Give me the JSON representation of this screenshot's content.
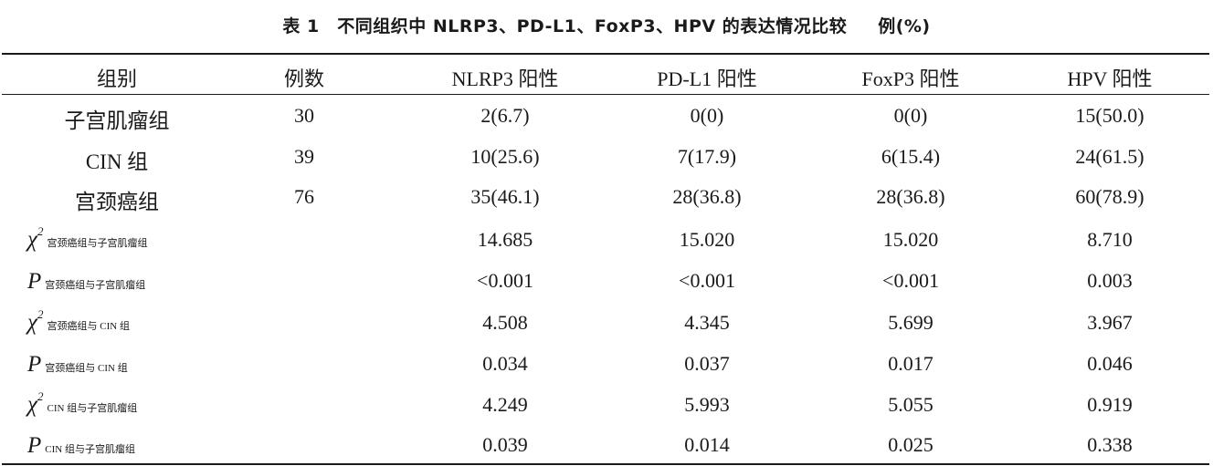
{
  "caption": {
    "title": "表 1　不同组织中 NLRP3、PD-L1、FoxP3、HPV 的表达情况比较",
    "unit": "例(%)"
  },
  "headers": [
    "组别",
    "例数",
    "NLRP3 阳性",
    "PD-L1 阳性",
    "FoxP3 阳性",
    "HPV 阳性"
  ],
  "groups": [
    {
      "name": "子宫肌瘤组",
      "n": "30",
      "nlrp3": "2(6.7)",
      "pdl1": "0(0)",
      "foxp3": "0(0)",
      "hpv": "15(50.0)"
    },
    {
      "name": "CIN 组",
      "n": "39",
      "nlrp3": "10(25.6)",
      "pdl1": "7(17.9)",
      "foxp3": "6(15.4)",
      "hpv": "24(61.5)"
    },
    {
      "name": "宫颈癌组",
      "n": "76",
      "nlrp3": "35(46.1)",
      "pdl1": "28(36.8)",
      "foxp3": "28(36.8)",
      "hpv": "60(78.9)"
    }
  ],
  "stats": [
    {
      "symbol": "χ",
      "sup": "2",
      "compare": "宫颈癌组与子宫肌瘤组",
      "nlrp3": "14.685",
      "pdl1": "15.020",
      "foxp3": "15.020",
      "hpv": "8.710"
    },
    {
      "symbol": "P",
      "sup": "",
      "compare": "宫颈癌组与子宫肌瘤组",
      "nlrp3": "<0.001",
      "pdl1": "<0.001",
      "foxp3": "<0.001",
      "hpv": "0.003"
    },
    {
      "symbol": "χ",
      "sup": "2",
      "compare": "宫颈癌组与 CIN 组",
      "nlrp3": "4.508",
      "pdl1": "4.345",
      "foxp3": "5.699",
      "hpv": "3.967"
    },
    {
      "symbol": "P",
      "sup": "",
      "compare": "宫颈癌组与 CIN 组",
      "nlrp3": "0.034",
      "pdl1": "0.037",
      "foxp3": "0.017",
      "hpv": "0.046"
    },
    {
      "symbol": "χ",
      "sup": "2",
      "compare": "CIN 组与子宫肌瘤组",
      "nlrp3": "4.249",
      "pdl1": "5.993",
      "foxp3": "5.055",
      "hpv": "0.919"
    },
    {
      "symbol": "P",
      "sup": "",
      "compare": "CIN 组与子宫肌瘤组",
      "nlrp3": "0.039",
      "pdl1": "0.014",
      "foxp3": "0.025",
      "hpv": "0.338"
    }
  ]
}
